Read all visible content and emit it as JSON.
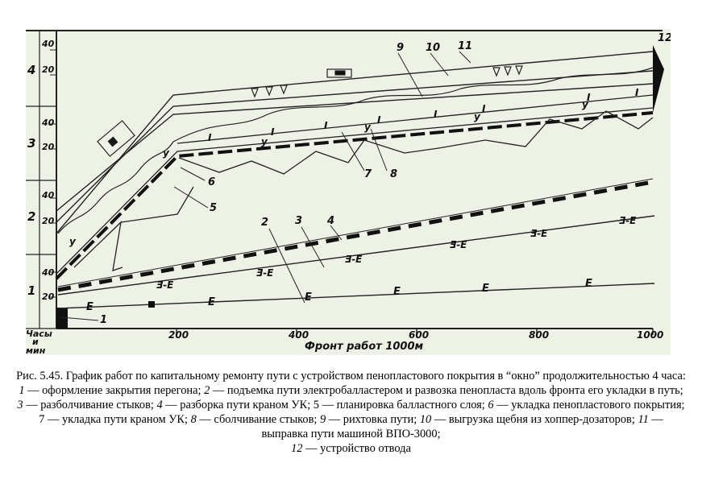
{
  "figure": {
    "y_hour_labels": [
      "1",
      "2",
      "3",
      "4"
    ],
    "y_min_labels": [
      "20",
      "40",
      "20",
      "40",
      "20",
      "40",
      "20",
      "40"
    ],
    "x_tick_labels": [
      "200",
      "400",
      "600",
      "800",
      "1000"
    ],
    "y_axis_title": [
      "Часы",
      "и",
      "мин"
    ],
    "x_axis_title": "Фронт работ 1000м",
    "callouts": [
      "1",
      "2",
      "3",
      "4",
      "5",
      "6",
      "7",
      "8",
      "9",
      "10",
      "11",
      "12"
    ],
    "mark_labels": {
      "E": "E",
      "B": "Ǝ‑E",
      "I": "I",
      "Y": "у"
    }
  },
  "caption": {
    "title": "Рис. 5.45. График работ по капитальному ремонту пути с устройством пенопластового покрытия в “окно” продолжительностью 4 часа:",
    "items": [
      {
        "n": "1",
        "text": " — оформление закрытия перегона; "
      },
      {
        "n": "2",
        "text": " — подъемка пути электробалластером и развозка пенопласта вдоль фронта его укладки в путь; "
      },
      {
        "n": "3",
        "text": " — разболчивание стыков; "
      },
      {
        "n": "4",
        "text": " — разборка пути краном УК; 5 — планировка балластного слоя; "
      },
      {
        "n": "6",
        "text": " — укладка пенопластового покрытия; 7 — укладка пути краном УК; "
      },
      {
        "n": "8",
        "text": " — сболчивание стыков; "
      },
      {
        "n": "9",
        "text": " — рихтовка пути; "
      },
      {
        "n": "10",
        "text": " — выгрузка щебня из хоппер-дозаторов; "
      },
      {
        "n": "11",
        "text": " — выправка пути машиной ВПО-3000;"
      },
      {
        "n": "12",
        "text": " — устройство отвода"
      }
    ]
  }
}
